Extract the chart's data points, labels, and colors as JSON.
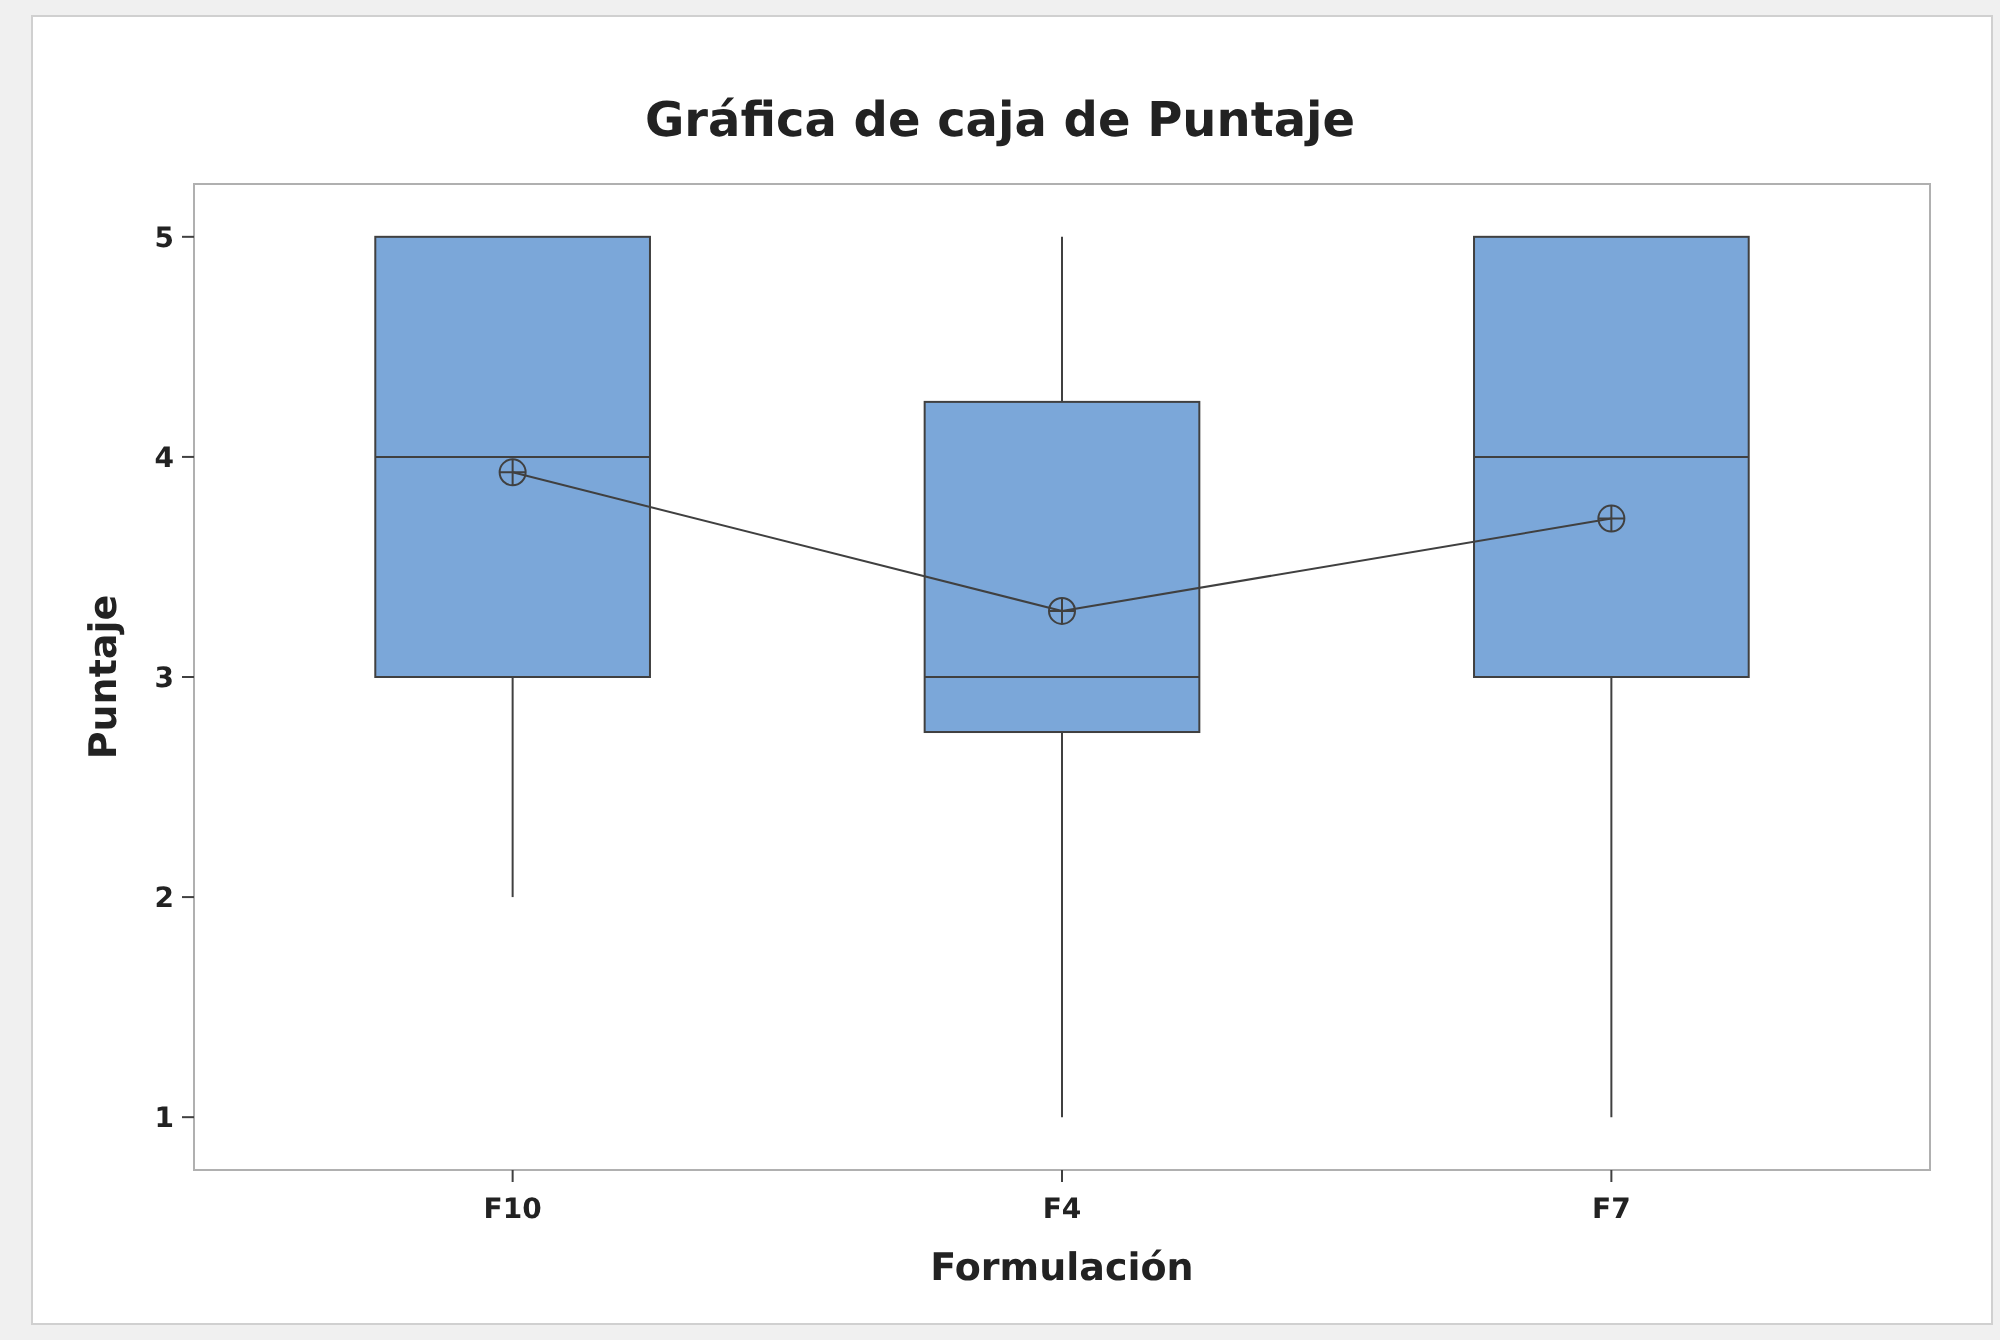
{
  "chart_data": {
    "type": "box",
    "title": "Gráfica de caja de Puntaje",
    "xlabel": "Formulación",
    "ylabel": "Puntaje",
    "categories": [
      "F10",
      "F4",
      "F7"
    ],
    "boxes": [
      {
        "low": 2,
        "q1": 3,
        "median": 4,
        "q3": 5,
        "high": 5
      },
      {
        "low": 1,
        "q1": 2.75,
        "median": 3,
        "q3": 4.25,
        "high": 5
      },
      {
        "low": 1,
        "q1": 3,
        "median": 4,
        "q3": 5,
        "high": 5
      }
    ],
    "color": "#7ba7d9",
    "series": [
      {
        "type": "line",
        "values": [
          3.93,
          3.3,
          3.72
        ],
        "color": "#404040",
        "marker": "circle"
      }
    ],
    "ylim": [
      0.76,
      5.24
    ],
    "yticks": [
      1,
      2,
      3,
      4,
      5
    ],
    "grid": false
  }
}
